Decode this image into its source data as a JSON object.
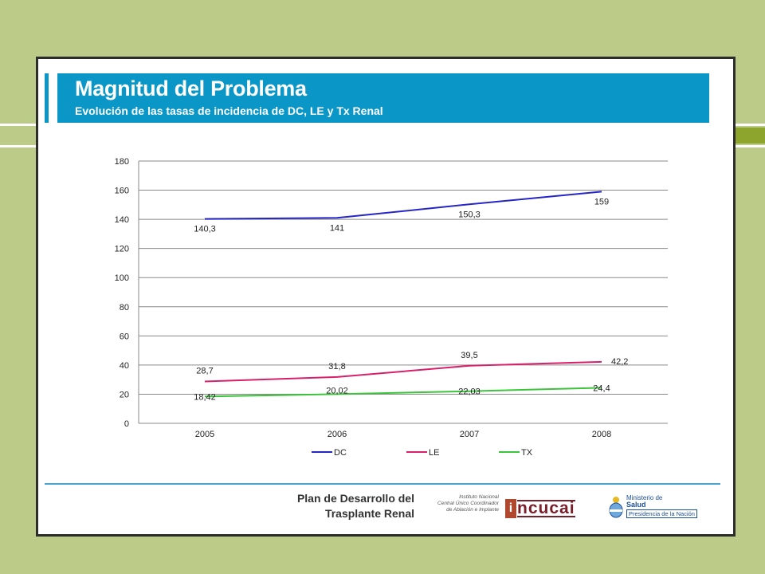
{
  "header": {
    "title": "Magnitud del Problema",
    "subtitle": "Evolución de las tasas de incidencia de DC, LE y Tx Renal"
  },
  "chart_data": {
    "type": "line",
    "categories": [
      "2005",
      "2006",
      "2007",
      "2008"
    ],
    "ylim": [
      0,
      180
    ],
    "yticks": [
      0,
      20,
      40,
      60,
      80,
      100,
      120,
      140,
      160,
      180
    ],
    "grid": true,
    "legend_position": "bottom",
    "series": [
      {
        "name": "DC",
        "color": "#2525c8",
        "values": [
          140.3,
          141,
          150.3,
          159
        ],
        "labels": [
          "140,3",
          "141",
          "150,3",
          "159"
        ]
      },
      {
        "name": "LE",
        "color": "#d8206a",
        "values": [
          28.7,
          31.8,
          39.5,
          42.2
        ],
        "labels": [
          "28,7",
          "31,8",
          "39,5",
          "42,2"
        ]
      },
      {
        "name": "TX",
        "color": "#3cc43c",
        "values": [
          18.42,
          20.02,
          22.03,
          24.4
        ],
        "labels": [
          "18,42",
          "20,02",
          "22,03",
          "24,4"
        ]
      }
    ]
  },
  "footer": {
    "plan_line1": "Plan de Desarrollo del",
    "plan_line2": "Trasplante Renal",
    "institute_lines": [
      "Instituto Nacional",
      "Central Único Coordinador",
      "de Ablación e Implante"
    ],
    "logo_letter": "i",
    "logo_name": "ncucai",
    "ministry_line1": "Ministerio de",
    "ministry_line2": "Salud",
    "ministry_line3": "Presidencia de la Nación"
  }
}
